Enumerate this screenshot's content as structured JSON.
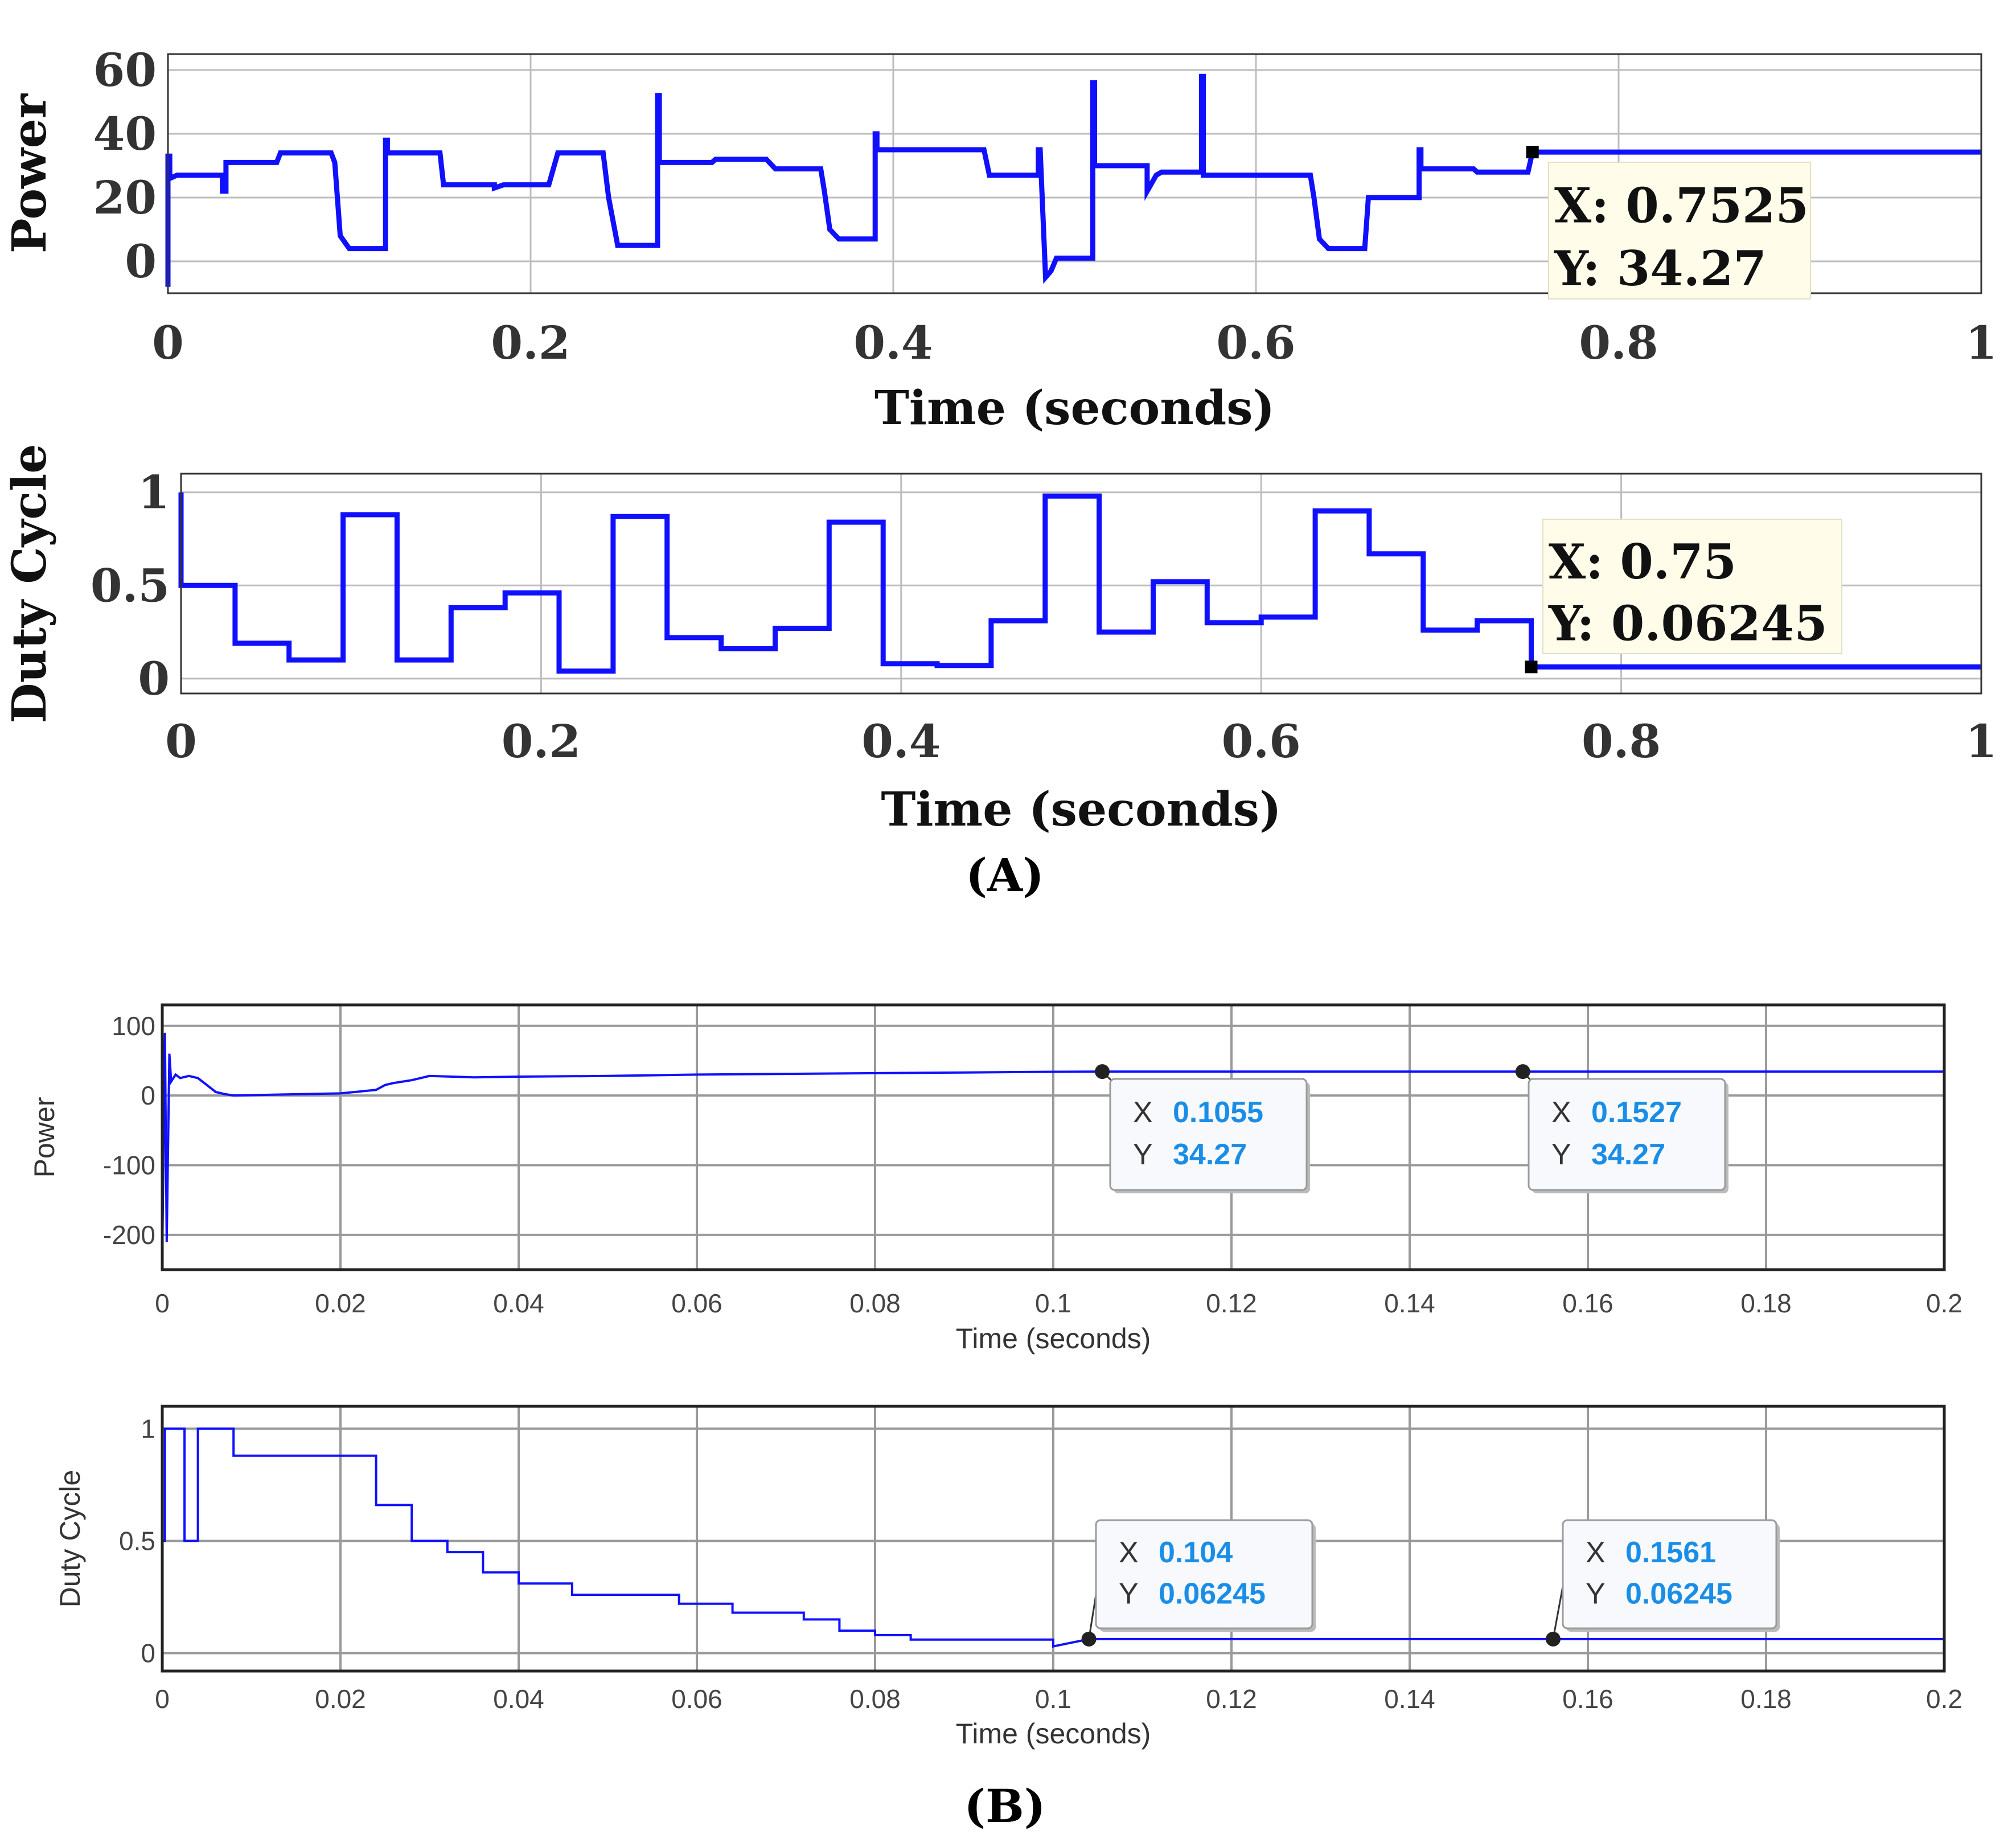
{
  "figure": {
    "panel_a_label": "(A)",
    "panel_b_label": "(B)"
  },
  "colors": {
    "line": "#1010ff",
    "grid": "#bdbdbd",
    "grid_b": "#9a9a9a",
    "axis": "#222222",
    "tip_bg_a": "#fffdea",
    "tip_bg_b": "#f7f9fc",
    "tip_num": "#1a8ee6"
  },
  "chart_data": [
    {
      "id": "a_power",
      "type": "line",
      "ylabel": "Power",
      "xlabel": "Time (seconds)",
      "xlim": [
        0,
        1
      ],
      "ylim": [
        -10,
        65
      ],
      "xticks": [
        0,
        0.2,
        0.4,
        0.6,
        0.8,
        1
      ],
      "xtick_labels": [
        "0",
        "0.2",
        "0.4",
        "0.6",
        "0.8",
        "1"
      ],
      "yticks": [
        0,
        20,
        40,
        60
      ],
      "ytick_labels": [
        "0",
        "20",
        "40",
        "60"
      ],
      "series": [
        {
          "name": "Power",
          "x": [
            0,
            0,
            0.001,
            0.001,
            0.005,
            0.03,
            0.03,
            0.032,
            0.032,
            0.06,
            0.062,
            0.09,
            0.092,
            0.095,
            0.1,
            0.12,
            0.12,
            0.121,
            0.121,
            0.15,
            0.152,
            0.18,
            0.18,
            0.185,
            0.21,
            0.21,
            0.215,
            0.24,
            0.243,
            0.248,
            0.27,
            0.27,
            0.271,
            0.271,
            0.3,
            0.302,
            0.33,
            0.335,
            0.36,
            0.362,
            0.365,
            0.37,
            0.39,
            0.39,
            0.391,
            0.391,
            0.42,
            0.425,
            0.45,
            0.453,
            0.48,
            0.48,
            0.481,
            0.484,
            0.487,
            0.49,
            0.51,
            0.51,
            0.511,
            0.511,
            0.54,
            0.54,
            0.545,
            0.548,
            0.57,
            0.57,
            0.571,
            0.571,
            0.6,
            0.605,
            0.63,
            0.632,
            0.635,
            0.64,
            0.66,
            0.662,
            0.69,
            0.69,
            0.691,
            0.691,
            0.72,
            0.722,
            0.75,
            0.7525,
            1.0
          ],
          "y": [
            -8,
            33,
            33,
            26,
            27,
            27,
            22,
            22,
            31,
            31,
            34,
            34,
            31,
            8,
            4,
            4,
            38,
            38,
            34,
            34,
            24,
            24,
            23,
            24,
            24,
            24,
            34,
            34,
            20,
            5,
            5,
            52,
            52,
            31,
            31,
            32,
            32,
            29,
            29,
            22,
            10,
            7,
            7,
            40,
            40,
            35,
            35,
            35,
            35,
            27,
            27,
            35,
            35,
            -5,
            -3,
            1,
            1,
            56,
            56,
            30,
            30,
            22,
            27,
            28,
            28,
            58,
            58,
            27,
            27,
            27,
            27,
            20,
            7,
            4,
            4,
            20,
            20,
            35,
            35,
            29,
            29,
            28,
            28,
            34.27,
            34.27
          ]
        }
      ],
      "annotations": [
        {
          "x": 0.7525,
          "y": 34.27,
          "x_text": "X: 0.7525",
          "y_text": "Y: 34.27"
        }
      ]
    },
    {
      "id": "a_duty",
      "type": "line",
      "ylabel": "Duty Cycle",
      "xlabel": "Time (seconds)",
      "xlim": [
        0,
        1
      ],
      "ylim": [
        -0.08,
        1.1
      ],
      "xticks": [
        0,
        0.2,
        0.4,
        0.6,
        0.8,
        1
      ],
      "xtick_labels": [
        "0",
        "0.2",
        "0.4",
        "0.6",
        "0.8",
        "1"
      ],
      "yticks": [
        0,
        0.5,
        1
      ],
      "ytick_labels": [
        "0",
        "0.5",
        "1"
      ],
      "series": [
        {
          "name": "Duty Cycle",
          "x": [
            0,
            0,
            0.03,
            0.03,
            0.06,
            0.06,
            0.09,
            0.09,
            0.12,
            0.12,
            0.15,
            0.15,
            0.18,
            0.18,
            0.21,
            0.21,
            0.24,
            0.24,
            0.27,
            0.27,
            0.3,
            0.3,
            0.33,
            0.33,
            0.36,
            0.36,
            0.39,
            0.39,
            0.42,
            0.42,
            0.45,
            0.45,
            0.48,
            0.48,
            0.51,
            0.51,
            0.54,
            0.54,
            0.57,
            0.57,
            0.6,
            0.6,
            0.63,
            0.63,
            0.66,
            0.66,
            0.69,
            0.69,
            0.72,
            0.72,
            0.75,
            0.75,
            1.0
          ],
          "y": [
            1.0,
            0.5,
            0.5,
            0.19,
            0.19,
            0.1,
            0.1,
            0.88,
            0.88,
            0.1,
            0.1,
            0.38,
            0.38,
            0.46,
            0.46,
            0.04,
            0.04,
            0.87,
            0.87,
            0.22,
            0.22,
            0.16,
            0.16,
            0.27,
            0.27,
            0.84,
            0.84,
            0.08,
            0.08,
            0.07,
            0.07,
            0.31,
            0.31,
            0.98,
            0.98,
            0.25,
            0.25,
            0.52,
            0.52,
            0.3,
            0.3,
            0.33,
            0.33,
            0.9,
            0.9,
            0.67,
            0.67,
            0.26,
            0.26,
            0.31,
            0.31,
            0.06245,
            0.06245
          ]
        }
      ],
      "annotations": [
        {
          "x": 0.75,
          "y": 0.06245,
          "x_text": "X: 0.75",
          "y_text": "Y: 0.06245"
        }
      ]
    },
    {
      "id": "b_power",
      "type": "line",
      "ylabel": "Power",
      "xlabel": "Time (seconds)",
      "xlim": [
        0,
        0.2
      ],
      "ylim": [
        -250,
        130
      ],
      "xticks": [
        0,
        0.02,
        0.04,
        0.06,
        0.08,
        0.1,
        0.12,
        0.14,
        0.16,
        0.18,
        0.2
      ],
      "xtick_labels": [
        "0",
        "0.02",
        "0.04",
        "0.06",
        "0.08",
        "0.1",
        "0.12",
        "0.14",
        "0.16",
        "0.18",
        "0.2"
      ],
      "yticks": [
        100,
        0,
        -100,
        -200
      ],
      "ytick_labels": [
        "100",
        "0",
        "-100",
        "-200"
      ],
      "series": [
        {
          "name": "Power",
          "x": [
            0,
            0.0003,
            0.0005,
            0.0008,
            0.001,
            0.0015,
            0.002,
            0.003,
            0.004,
            0.005,
            0.006,
            0.007,
            0.008,
            0.012,
            0.016,
            0.02,
            0.024,
            0.025,
            0.026,
            0.028,
            0.03,
            0.035,
            0.04,
            0.05,
            0.06,
            0.07,
            0.08,
            0.09,
            0.1,
            0.1055,
            0.12,
            0.14,
            0.1527,
            0.17,
            0.2
          ],
          "y": [
            -230,
            90,
            -210,
            60,
            20,
            30,
            25,
            28,
            25,
            15,
            5,
            2,
            0,
            1,
            2,
            3,
            8,
            15,
            18,
            22,
            28,
            26,
            27,
            28,
            30,
            31,
            32,
            33,
            34,
            34.27,
            34.27,
            34.27,
            34.27,
            34.27,
            34.27
          ]
        }
      ],
      "annotations": [
        {
          "x": 0.1055,
          "y": 34.27,
          "x_label": "X",
          "x_value": "0.1055",
          "y_label": "Y",
          "y_value": "34.27"
        },
        {
          "x": 0.1527,
          "y": 34.27,
          "x_label": "X",
          "x_value": "0.1527",
          "y_label": "Y",
          "y_value": "34.27"
        }
      ]
    },
    {
      "id": "b_duty",
      "type": "line",
      "ylabel": "Duty Cycle",
      "xlabel": "Time (seconds)",
      "xlim": [
        0,
        0.2
      ],
      "ylim": [
        -0.08,
        1.1
      ],
      "xticks": [
        0,
        0.02,
        0.04,
        0.06,
        0.08,
        0.1,
        0.12,
        0.14,
        0.16,
        0.18,
        0.2
      ],
      "xtick_labels": [
        "0",
        "0.02",
        "0.04",
        "0.06",
        "0.08",
        "0.1",
        "0.12",
        "0.14",
        "0.16",
        "0.18",
        "0.2"
      ],
      "yticks": [
        1,
        0.5,
        0
      ],
      "ytick_labels": [
        "1",
        "0.5",
        "0"
      ],
      "series": [
        {
          "name": "Duty Cycle",
          "x": [
            0,
            0,
            0.0003,
            0.0003,
            0.0025,
            0.0025,
            0.004,
            0.004,
            0.008,
            0.008,
            0.024,
            0.024,
            0.028,
            0.028,
            0.032,
            0.032,
            0.036,
            0.036,
            0.04,
            0.04,
            0.046,
            0.046,
            0.058,
            0.058,
            0.064,
            0.064,
            0.072,
            0.072,
            0.076,
            0.076,
            0.08,
            0.08,
            0.084,
            0.084,
            0.1,
            0.1,
            0.104,
            0.2
          ],
          "y": [
            1.0,
            0.5,
            0.5,
            1.0,
            1.0,
            0.5,
            0.5,
            1.0,
            1.0,
            0.88,
            0.88,
            0.66,
            0.66,
            0.5,
            0.5,
            0.45,
            0.45,
            0.36,
            0.36,
            0.31,
            0.31,
            0.26,
            0.26,
            0.22,
            0.22,
            0.18,
            0.18,
            0.15,
            0.15,
            0.1,
            0.1,
            0.08,
            0.08,
            0.06,
            0.06,
            0.03,
            0.06245,
            0.06245
          ]
        }
      ],
      "annotations": [
        {
          "x": 0.104,
          "y": 0.06245,
          "x_label": "X",
          "x_value": "0.104",
          "y_label": "Y",
          "y_value": "0.06245"
        },
        {
          "x": 0.1561,
          "y": 0.06245,
          "x_label": "X",
          "x_value": "0.1561",
          "y_label": "Y",
          "y_value": "0.06245"
        }
      ]
    }
  ]
}
